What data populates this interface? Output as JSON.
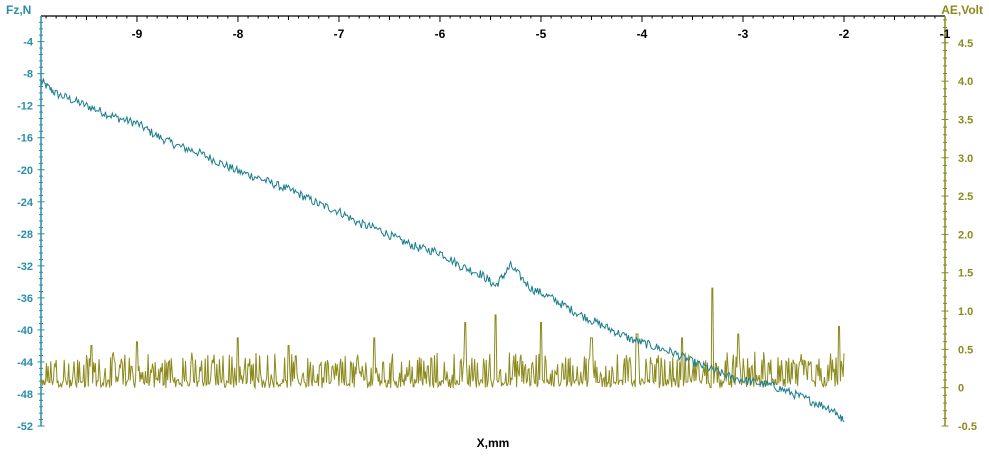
{
  "chart_data": {
    "type": "line",
    "xlabel": "X,mm",
    "left_axis_label": "Fz,N",
    "right_axis_label": "AE,Volt",
    "x_range": [
      -9.95,
      -1
    ],
    "x_ticks": [
      -9,
      -8,
      -7,
      -6,
      -5,
      -4,
      -3,
      -2,
      -1
    ],
    "left_range": [
      -52,
      -0.8
    ],
    "left_ticks": [
      -4,
      -8,
      -12,
      -16,
      -20,
      -24,
      -28,
      -32,
      -36,
      -40,
      -44,
      -48,
      -52
    ],
    "right_range": [
      -0.5,
      4.85
    ],
    "right_ticks": [
      "4.5",
      "4.0",
      "3.5",
      "3.0",
      "2.5",
      "2.0",
      "1.5",
      "1.0",
      "0.5",
      "0",
      "-0.5"
    ],
    "grid": false,
    "colors": {
      "fz": "#1a7d8e",
      "ae": "#8c8a1c",
      "axis_text": "#2a8fa4"
    },
    "series": [
      {
        "name": "Fz,N",
        "axis": "left",
        "x": [
          -9.95,
          -9.8,
          -9.6,
          -9.4,
          -9.2,
          -9.0,
          -8.8,
          -8.6,
          -8.4,
          -8.2,
          -8.0,
          -7.8,
          -7.6,
          -7.4,
          -7.2,
          -7.0,
          -6.8,
          -6.6,
          -6.4,
          -6.2,
          -6.0,
          -5.8,
          -5.6,
          -5.45,
          -5.3,
          -5.1,
          -4.9,
          -4.7,
          -4.5,
          -4.3,
          -4.1,
          -3.9,
          -3.7,
          -3.5,
          -3.3,
          -3.1,
          -2.9,
          -2.7,
          -2.5,
          -2.3,
          -2.1,
          -2.0
        ],
        "y": [
          -9,
          -10.5,
          -11.5,
          -12.5,
          -13.5,
          -14.2,
          -15.8,
          -17,
          -17.8,
          -19,
          -20.2,
          -21,
          -22,
          -23,
          -24.3,
          -25.2,
          -26.7,
          -27.5,
          -28.8,
          -29.8,
          -30.3,
          -32,
          -33,
          -34.5,
          -32,
          -34.8,
          -36,
          -37.5,
          -38.8,
          -40,
          -41.2,
          -42,
          -42.8,
          -44,
          -45,
          -46,
          -46.5,
          -47,
          -48,
          -49,
          -50,
          -51.5
        ]
      },
      {
        "name": "AE,Volt",
        "axis": "right",
        "baseline": 0.05,
        "noise_amplitude": 0.35,
        "x_range": [
          -9.95,
          -2.0
        ],
        "peaks": [
          {
            "x": -9.45,
            "y": 0.55
          },
          {
            "x": -9.0,
            "y": 0.6
          },
          {
            "x": -8.0,
            "y": 0.65
          },
          {
            "x": -7.5,
            "y": 0.55
          },
          {
            "x": -6.65,
            "y": 0.65
          },
          {
            "x": -5.75,
            "y": 0.85
          },
          {
            "x": -5.45,
            "y": 0.95
          },
          {
            "x": -5.0,
            "y": 0.85
          },
          {
            "x": -4.5,
            "y": 0.65
          },
          {
            "x": -4.05,
            "y": 0.7
          },
          {
            "x": -3.6,
            "y": 0.65
          },
          {
            "x": -3.3,
            "y": 1.3
          },
          {
            "x": -3.05,
            "y": 0.7
          },
          {
            "x": -2.05,
            "y": 0.8
          }
        ]
      }
    ]
  }
}
